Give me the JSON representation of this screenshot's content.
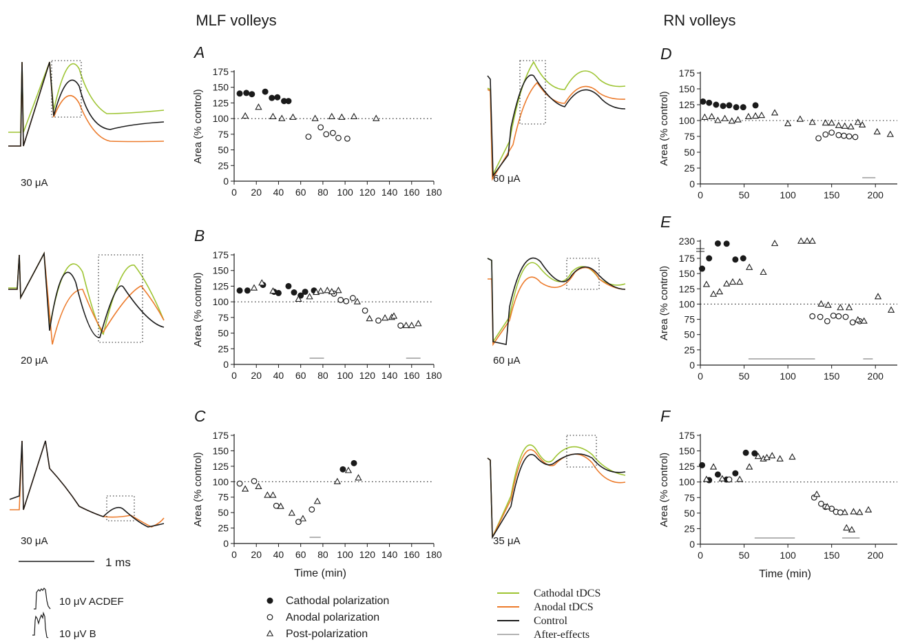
{
  "headers": {
    "mlf": "MLF volleys",
    "rn": "RN volleys"
  },
  "colors": {
    "cathodal": "#9dc431",
    "anodal": "#ec7a2a",
    "control": "#1a1a1a",
    "after": "#b3b3b3"
  },
  "scalebars": {
    "time": "1 ms",
    "acdef": "10 μV ACDEF",
    "b": "10 μV B"
  },
  "legend": {
    "markers": [
      {
        "marker": "filled-circle",
        "label": "Cathodal polarization"
      },
      {
        "marker": "open-circle",
        "label": "Anodal polarization"
      },
      {
        "marker": "open-triangle",
        "label": "Post-polarization"
      }
    ],
    "lines": [
      {
        "key": "cathodal",
        "label": "Cathodal tDCS"
      },
      {
        "key": "anodal",
        "label": "Anodal tDCS"
      },
      {
        "key": "control",
        "label": "Control"
      },
      {
        "key": "after",
        "label": "After-effects"
      }
    ]
  },
  "traces": [
    {
      "id": "A",
      "label": "30 μA"
    },
    {
      "id": "D",
      "label": "60 μA"
    },
    {
      "id": "B",
      "label": "20 μA"
    },
    {
      "id": "E",
      "label": "60 μA"
    },
    {
      "id": "C",
      "label": "30 μA"
    },
    {
      "id": "F",
      "label": "35 μA"
    }
  ],
  "chart_data": [
    {
      "panel": "A",
      "type": "scatter",
      "ylabel": "Area (% control)",
      "xlabel": "",
      "xlim": [
        0,
        180
      ],
      "ylim": [
        0,
        175
      ],
      "xticks": [
        0,
        20,
        40,
        60,
        80,
        100,
        120,
        140,
        160,
        180
      ],
      "yticks": [
        0,
        25,
        50,
        75,
        100,
        125,
        150,
        175
      ],
      "reference_y": 100,
      "series": [
        {
          "name": "Cathodal polarization",
          "marker": "filled-circle",
          "points": [
            [
              5,
              140
            ],
            [
              11,
              141
            ],
            [
              16,
              139
            ],
            [
              28,
              143
            ],
            [
              34,
              133
            ],
            [
              39,
              134
            ],
            [
              45,
              128
            ],
            [
              49,
              128
            ]
          ]
        },
        {
          "name": "Anodal polarization",
          "marker": "open-circle",
          "points": [
            [
              67,
              71
            ],
            [
              78,
              86
            ],
            [
              83,
              75
            ],
            [
              89,
              77
            ],
            [
              94,
              69
            ],
            [
              102,
              68
            ]
          ]
        },
        {
          "name": "Post-polarization",
          "marker": "open-triangle",
          "points": [
            [
              10,
              104
            ],
            [
              22,
              118
            ],
            [
              35,
              103
            ],
            [
              43,
              100
            ],
            [
              53,
              102
            ],
            [
              73,
              100
            ],
            [
              88,
              103
            ],
            [
              97,
              102
            ],
            [
              108,
              103
            ],
            [
              128,
              100
            ]
          ]
        }
      ],
      "after_effects": []
    },
    {
      "panel": "D",
      "type": "scatter",
      "ylabel": "Area (% control)",
      "xlabel": "",
      "xlim": [
        0,
        225
      ],
      "ylim": [
        0,
        175
      ],
      "xticks": [
        0,
        50,
        100,
        150,
        200
      ],
      "yticks": [
        0,
        25,
        50,
        75,
        100,
        125,
        150,
        175
      ],
      "reference_y": 100,
      "series": [
        {
          "name": "Cathodal polarization",
          "marker": "filled-circle",
          "points": [
            [
              3,
              130
            ],
            [
              10,
              128
            ],
            [
              18,
              125
            ],
            [
              26,
              123
            ],
            [
              33,
              124
            ],
            [
              41,
              121
            ],
            [
              49,
              121
            ],
            [
              63,
              124
            ]
          ]
        },
        {
          "name": "Anodal polarization",
          "marker": "open-circle",
          "points": [
            [
              135,
              72
            ],
            [
              143,
              78
            ],
            [
              150,
              81
            ],
            [
              158,
              77
            ],
            [
              164,
              76
            ],
            [
              170,
              75
            ],
            [
              177,
              74
            ]
          ]
        },
        {
          "name": "Post-polarization",
          "marker": "open-triangle",
          "points": [
            [
              5,
              105
            ],
            [
              13,
              106
            ],
            [
              20,
              100
            ],
            [
              28,
              103
            ],
            [
              36,
              99
            ],
            [
              43,
              101
            ],
            [
              55,
              106
            ],
            [
              63,
              107
            ],
            [
              70,
              108
            ],
            [
              85,
              112
            ],
            [
              100,
              95
            ],
            [
              114,
              102
            ],
            [
              128,
              97
            ],
            [
              143,
              96
            ],
            [
              150,
              96
            ],
            [
              158,
              92
            ],
            [
              165,
              91
            ],
            [
              172,
              90
            ],
            [
              180,
              97
            ],
            [
              185,
              93
            ],
            [
              202,
              82
            ],
            [
              217,
              78
            ]
          ]
        }
      ],
      "after_effects": [
        [
          185,
          200
        ]
      ]
    },
    {
      "panel": "B",
      "type": "scatter",
      "ylabel": "Area (% control)",
      "xlabel": "",
      "xlim": [
        0,
        180
      ],
      "ylim": [
        0,
        175
      ],
      "xticks": [
        0,
        20,
        40,
        60,
        80,
        100,
        120,
        140,
        160,
        180
      ],
      "yticks": [
        0,
        25,
        50,
        75,
        100,
        125,
        150,
        175
      ],
      "reference_y": 100,
      "series": [
        {
          "name": "Cathodal polarization",
          "marker": "filled-circle",
          "points": [
            [
              5,
              118
            ],
            [
              12,
              118
            ],
            [
              26,
              127
            ],
            [
              36,
              116
            ],
            [
              40,
              114
            ],
            [
              49,
              125
            ],
            [
              54,
              115
            ],
            [
              60,
              110
            ],
            [
              64,
              116
            ],
            [
              72,
              118
            ]
          ]
        },
        {
          "name": "Anodal polarization",
          "marker": "open-circle",
          "points": [
            [
              90,
              113
            ],
            [
              96,
              103
            ],
            [
              101,
              101
            ],
            [
              107,
              106
            ],
            [
              118,
              86
            ],
            [
              130,
              70
            ],
            [
              150,
              62
            ]
          ]
        },
        {
          "name": "Post-polarization",
          "marker": "open-triangle",
          "points": [
            [
              18,
              122
            ],
            [
              25,
              130
            ],
            [
              35,
              117
            ],
            [
              58,
              104
            ],
            [
              68,
              108
            ],
            [
              74,
              115
            ],
            [
              78,
              117
            ],
            [
              84,
              118
            ],
            [
              88,
              116
            ],
            [
              94,
              118
            ],
            [
              111,
              100
            ],
            [
              122,
              73
            ],
            [
              136,
              74
            ],
            [
              142,
              75
            ],
            [
              144,
              77
            ],
            [
              155,
              62
            ],
            [
              160,
              62
            ],
            [
              166,
              65
            ]
          ]
        }
      ],
      "after_effects": [
        [
          68,
          81
        ],
        [
          155,
          168
        ]
      ]
    },
    {
      "panel": "E",
      "type": "scatter",
      "ylabel": "Area (% control)",
      "xlabel": "",
      "xlim": [
        0,
        225
      ],
      "ylim": [
        0,
        230
      ],
      "y_axis_break": true,
      "xticks": [
        0,
        50,
        100,
        150,
        200
      ],
      "yticks": [
        0,
        25,
        50,
        75,
        100,
        125,
        150,
        175,
        230
      ],
      "reference_y": 100,
      "series": [
        {
          "name": "Cathodal polarization",
          "marker": "filled-circle",
          "points": [
            [
              2,
              158
            ],
            [
              10,
              175
            ],
            [
              20,
              182
            ],
            [
              30,
              178
            ],
            [
              40,
              173
            ],
            [
              49,
              175
            ]
          ]
        },
        {
          "name": "Anodal polarization",
          "marker": "open-circle",
          "points": [
            [
              128,
              80
            ],
            [
              137,
              79
            ],
            [
              145,
              72
            ],
            [
              152,
              81
            ],
            [
              158,
              80
            ],
            [
              166,
              79
            ],
            [
              174,
              70
            ],
            [
              182,
              72
            ]
          ]
        },
        {
          "name": "Post-polarization",
          "marker": "open-triangle",
          "points": [
            [
              7,
              132
            ],
            [
              15,
              116
            ],
            [
              22,
              120
            ],
            [
              30,
              133
            ],
            [
              37,
              136
            ],
            [
              45,
              136
            ],
            [
              56,
              160
            ],
            [
              72,
              152
            ],
            [
              85,
              180
            ],
            [
              115,
              228
            ],
            [
              122,
              229
            ],
            [
              128,
              228
            ],
            [
              138,
              100
            ],
            [
              146,
              98
            ],
            [
              160,
              94
            ],
            [
              170,
              94
            ],
            [
              180,
              74
            ],
            [
              187,
              72
            ],
            [
              203,
              112
            ],
            [
              218,
              90
            ]
          ]
        }
      ],
      "after_effects": [
        [
          55,
          131
        ],
        [
          186,
          197
        ]
      ]
    },
    {
      "panel": "C",
      "type": "scatter",
      "ylabel": "Area (% control)",
      "xlabel": "Time (min)",
      "xlim": [
        0,
        180
      ],
      "ylim": [
        0,
        175
      ],
      "xticks": [
        0,
        20,
        40,
        60,
        80,
        100,
        120,
        140,
        160,
        180
      ],
      "yticks": [
        0,
        25,
        50,
        75,
        100,
        125,
        150,
        175
      ],
      "reference_y": 100,
      "series": [
        {
          "name": "Cathodal polarization",
          "marker": "filled-circle",
          "points": [
            [
              98,
              120
            ],
            [
              108,
              130
            ]
          ]
        },
        {
          "name": "Anodal polarization",
          "marker": "open-circle",
          "points": [
            [
              5,
              97
            ],
            [
              18,
              101
            ],
            [
              38,
              61
            ],
            [
              58,
              35
            ],
            [
              70,
              55
            ]
          ]
        },
        {
          "name": "Post-polarization",
          "marker": "open-triangle",
          "points": [
            [
              10,
              88
            ],
            [
              22,
              92
            ],
            [
              30,
              78
            ],
            [
              35,
              78
            ],
            [
              42,
              60
            ],
            [
              52,
              49
            ],
            [
              62,
              40
            ],
            [
              75,
              68
            ],
            [
              93,
              100
            ],
            [
              103,
              118
            ],
            [
              112,
              106
            ]
          ]
        }
      ],
      "after_effects": [
        [
          68,
          78
        ]
      ]
    },
    {
      "panel": "F",
      "type": "scatter",
      "ylabel": "Area (% control)",
      "xlabel": "Time (min)",
      "xlim": [
        0,
        225
      ],
      "ylim": [
        0,
        175
      ],
      "xticks": [
        0,
        50,
        100,
        150,
        200
      ],
      "yticks": [
        0,
        25,
        50,
        75,
        100,
        125,
        150,
        175
      ],
      "reference_y": 100,
      "series": [
        {
          "name": "Cathodal polarization",
          "marker": "filled-circle",
          "points": [
            [
              2,
              127
            ],
            [
              10,
              103
            ],
            [
              20,
              112
            ],
            [
              30,
              104
            ],
            [
              40,
              114
            ],
            [
              52,
              147
            ],
            [
              62,
              146
            ]
          ]
        },
        {
          "name": "Anodal polarization",
          "marker": "open-circle",
          "points": [
            [
              33,
              104
            ],
            [
              130,
              75
            ],
            [
              138,
              65
            ],
            [
              143,
              60
            ],
            [
              150,
              57
            ],
            [
              155,
              52
            ],
            [
              160,
              51
            ]
          ]
        },
        {
          "name": "Post-polarization",
          "marker": "open-triangle",
          "points": [
            [
              7,
              104
            ],
            [
              15,
              124
            ],
            [
              25,
              105
            ],
            [
              45,
              104
            ],
            [
              56,
              124
            ],
            [
              66,
              141
            ],
            [
              72,
              137
            ],
            [
              76,
              139
            ],
            [
              82,
              142
            ],
            [
              91,
              137
            ],
            [
              105,
              140
            ],
            [
              133,
              80
            ],
            [
              145,
              60
            ],
            [
              165,
              51
            ],
            [
              175,
              52
            ],
            [
              167,
              26
            ],
            [
              173,
              23
            ],
            [
              182,
              51
            ],
            [
              192,
              55
            ]
          ]
        }
      ],
      "after_effects": [
        [
          62,
          108
        ],
        [
          162,
          182
        ]
      ]
    }
  ]
}
